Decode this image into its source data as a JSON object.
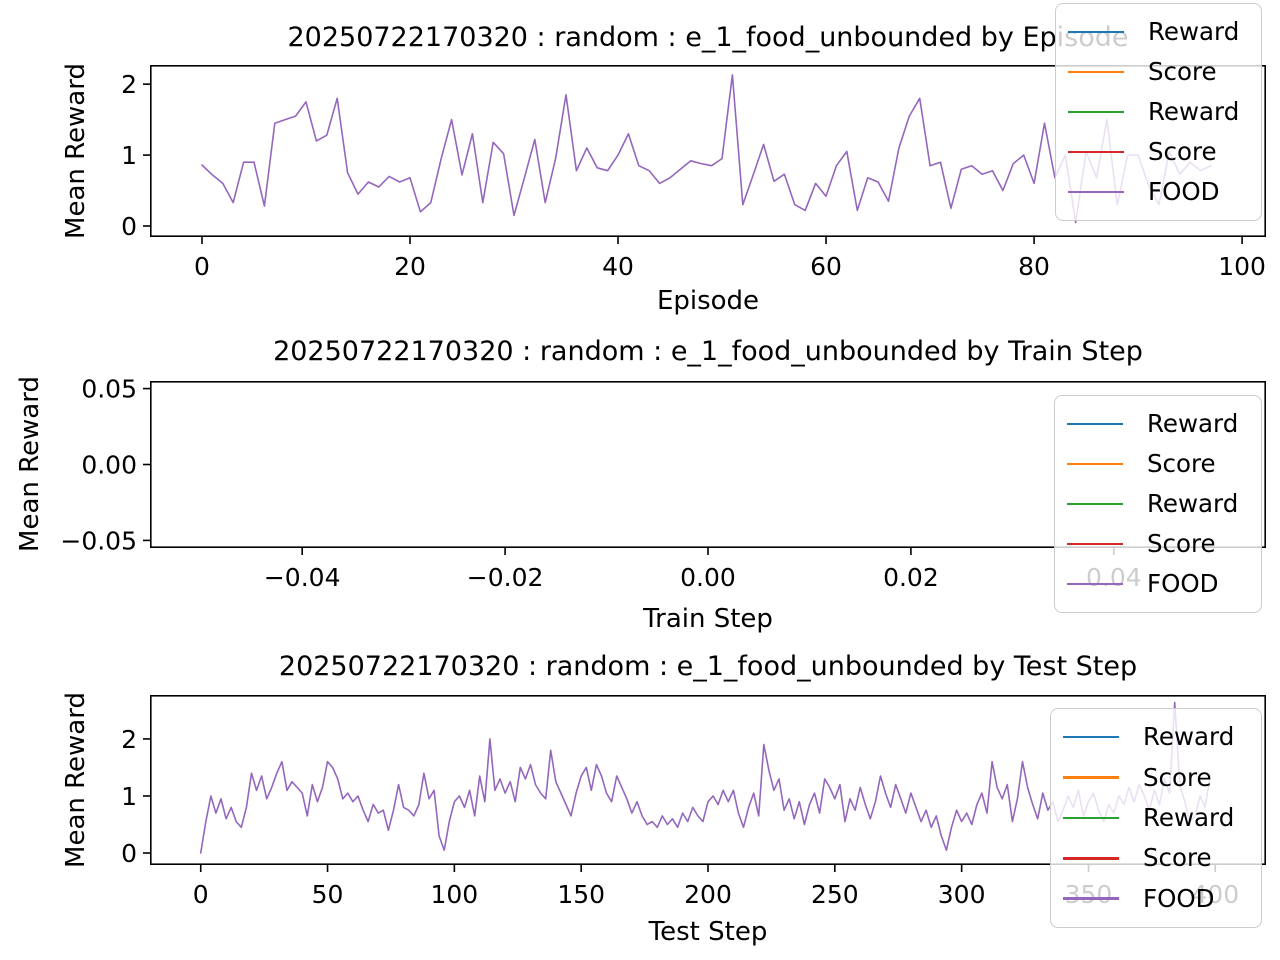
{
  "figure": {
    "background": "#ffffff",
    "text_color": "#000000"
  },
  "legend_colors": {
    "blue": "#1f77b4",
    "orange": "#ff7f0e",
    "green": "#2ca02c",
    "red": "#d62728",
    "purple": "#9467bd"
  },
  "chart_data": [
    {
      "type": "line",
      "title": "20250722170320 : random : e_1_food_unbounded by Episode",
      "xlabel": "Episode",
      "ylabel": "Mean Reward",
      "xlim": [
        -5,
        102.3
      ],
      "ylim": [
        -0.155,
        2.27
      ],
      "grid": false,
      "xticks": {
        "values": [
          0,
          20,
          40,
          60,
          80,
          100
        ],
        "labels": [
          "0",
          "20",
          "40",
          "60",
          "80",
          "100"
        ]
      },
      "yticks": {
        "values": [
          0,
          1,
          2
        ],
        "labels": [
          "0",
          "1",
          "2"
        ]
      },
      "legend": {
        "position": "upper right",
        "entries": [
          {
            "label": "Reward",
            "color": "#1f77b4"
          },
          {
            "label": "Score",
            "color": "#ff7f0e"
          },
          {
            "label": "Reward",
            "color": "#2ca02c"
          },
          {
            "label": "Score",
            "color": "#d62728"
          },
          {
            "label": "FOOD",
            "color": "#9467bd"
          }
        ]
      },
      "series": [
        {
          "name": "FOOD",
          "color": "#9467bd",
          "x_start": 0,
          "x_step": 1,
          "y": [
            0.86,
            0.72,
            0.6,
            0.33,
            0.9,
            0.9,
            0.28,
            1.45,
            1.5,
            1.55,
            1.75,
            1.2,
            1.28,
            1.8,
            0.75,
            0.45,
            0.62,
            0.55,
            0.7,
            0.62,
            0.68,
            0.2,
            0.33,
            0.95,
            1.5,
            0.72,
            1.3,
            0.33,
            1.18,
            1.02,
            0.15,
            0.68,
            1.22,
            0.33,
            0.95,
            1.85,
            0.78,
            1.1,
            0.82,
            0.78,
            1.0,
            1.3,
            0.85,
            0.78,
            0.6,
            0.68,
            0.8,
            0.92,
            0.88,
            0.85,
            0.95,
            2.13,
            0.3,
            0.72,
            1.15,
            0.63,
            0.73,
            0.3,
            0.22,
            0.6,
            0.42,
            0.85,
            1.05,
            0.22,
            0.68,
            0.62,
            0.35,
            1.1,
            1.55,
            1.8,
            0.85,
            0.9,
            0.25,
            0.8,
            0.85,
            0.73,
            0.78,
            0.5,
            0.88,
            1.0,
            0.6,
            1.45,
            0.68,
            1.0,
            0.05,
            1.05,
            0.68,
            1.5,
            0.3,
            1.0,
            1.0,
            0.58,
            0.3,
            1.05,
            0.73,
            0.9,
            0.78,
            0.85
          ]
        }
      ]
    },
    {
      "type": "line",
      "title": "20250722170320 : random : e_1_food_unbounded by Train Step",
      "xlabel": "Train Step",
      "ylabel": "Mean Reward",
      "xlim": [
        -0.055,
        0.055
      ],
      "ylim": [
        -0.055,
        0.055
      ],
      "grid": false,
      "xticks": {
        "values": [
          -0.04,
          -0.02,
          0.0,
          0.02,
          0.04
        ],
        "labels": [
          "−0.04",
          "−0.02",
          "0.00",
          "0.02",
          "0.04"
        ]
      },
      "yticks": {
        "values": [
          -0.05,
          0.0,
          0.05
        ],
        "labels": [
          "−0.05",
          "0.00",
          "0.05"
        ]
      },
      "legend": {
        "position": "right",
        "entries": [
          {
            "label": "Reward",
            "color": "#1f77b4"
          },
          {
            "label": "Score",
            "color": "#ff7f0e"
          },
          {
            "label": "Reward",
            "color": "#2ca02c"
          },
          {
            "label": "Score",
            "color": "#d62728"
          },
          {
            "label": "FOOD",
            "color": "#9467bd"
          }
        ]
      },
      "series": []
    },
    {
      "type": "line",
      "title": "20250722170320 : random : e_1_food_unbounded by Test Step",
      "xlabel": "Test Step",
      "ylabel": "Mean Reward",
      "xlim": [
        -20,
        420
      ],
      "ylim": [
        -0.21,
        2.77
      ],
      "grid": false,
      "xticks": {
        "values": [
          0,
          50,
          100,
          150,
          200,
          250,
          300,
          350,
          400
        ],
        "labels": [
          "0",
          "50",
          "100",
          "150",
          "200",
          "250",
          "300",
          "350",
          "400"
        ]
      },
      "yticks": {
        "values": [
          0,
          1,
          2
        ],
        "labels": [
          "0",
          "1",
          "2"
        ]
      },
      "legend": {
        "position": "right",
        "entries": [
          {
            "label": "Reward",
            "color": "#1f77b4"
          },
          {
            "label": "Score",
            "color": "#ff7f0e"
          },
          {
            "label": "Reward",
            "color": "#2ca02c"
          },
          {
            "label": "Score",
            "color": "#d62728"
          },
          {
            "label": "FOOD",
            "color": "#9467bd"
          }
        ]
      },
      "series": [
        {
          "name": "FOOD",
          "color": "#9467bd",
          "x_start": 0,
          "x_step": 2,
          "y": [
            0.0,
            0.55,
            1.0,
            0.7,
            0.95,
            0.6,
            0.8,
            0.55,
            0.45,
            0.8,
            1.4,
            1.1,
            1.35,
            0.95,
            1.15,
            1.4,
            1.6,
            1.1,
            1.25,
            1.15,
            1.05,
            0.65,
            1.2,
            0.9,
            1.15,
            1.6,
            1.5,
            1.3,
            0.95,
            1.05,
            0.9,
            1.0,
            0.75,
            0.55,
            0.85,
            0.7,
            0.75,
            0.4,
            0.75,
            1.2,
            0.8,
            0.75,
            0.65,
            0.85,
            1.4,
            0.95,
            1.1,
            0.3,
            0.05,
            0.55,
            0.9,
            1.0,
            0.8,
            1.1,
            0.65,
            1.35,
            0.9,
            2.0,
            1.1,
            1.3,
            1.05,
            1.25,
            0.9,
            1.5,
            1.3,
            1.55,
            1.2,
            1.05,
            0.95,
            1.8,
            1.25,
            1.05,
            0.85,
            0.65,
            1.05,
            1.35,
            1.5,
            1.1,
            1.55,
            1.35,
            1.05,
            0.9,
            1.35,
            1.15,
            0.95,
            0.7,
            0.9,
            0.65,
            0.5,
            0.55,
            0.45,
            0.65,
            0.5,
            0.6,
            0.45,
            0.7,
            0.55,
            0.8,
            0.65,
            0.55,
            0.9,
            1.0,
            0.85,
            1.1,
            0.9,
            1.1,
            0.7,
            0.45,
            0.8,
            1.05,
            0.65,
            1.9,
            1.45,
            1.1,
            1.3,
            0.75,
            0.95,
            0.6,
            0.9,
            0.5,
            0.85,
            1.05,
            0.7,
            1.3,
            1.15,
            0.95,
            1.2,
            0.55,
            0.95,
            0.75,
            1.15,
            0.85,
            0.6,
            0.9,
            1.35,
            1.05,
            0.8,
            1.2,
            0.95,
            0.7,
            1.05,
            0.8,
            0.55,
            0.75,
            0.45,
            0.65,
            0.3,
            0.05,
            0.45,
            0.75,
            0.55,
            0.7,
            0.5,
            0.85,
            1.05,
            0.7,
            1.6,
            1.15,
            0.95,
            1.2,
            0.55,
            0.95,
            1.6,
            1.15,
            0.85,
            0.6,
            1.05,
            0.75,
            0.9,
            0.55,
            0.75,
            1.0,
            0.8,
            1.1,
            0.65,
            0.9,
            1.05,
            0.75,
            0.55,
            0.85,
            0.7,
            1.0,
            0.85,
            1.15,
            0.9,
            1.2,
            1.0,
            0.75,
            1.1,
            0.85,
            1.3,
            1.05,
            2.64,
            1.2,
            0.9,
            0.55,
            0.65,
            1.0,
            0.8,
            1.35
          ]
        }
      ]
    }
  ]
}
